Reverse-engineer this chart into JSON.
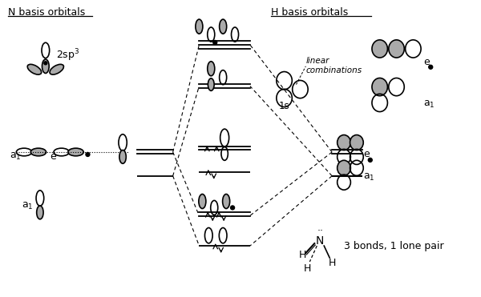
{
  "bg_color": "#ffffff",
  "N_basis_label": "N basis orbitals",
  "H_basis_label": "H basis orbitals",
  "bottom_text": "3 bonds, 1 lone pair",
  "gray_color": "#aaaaaa",
  "dark_gray": "#555555",
  "line_color": "#000000"
}
